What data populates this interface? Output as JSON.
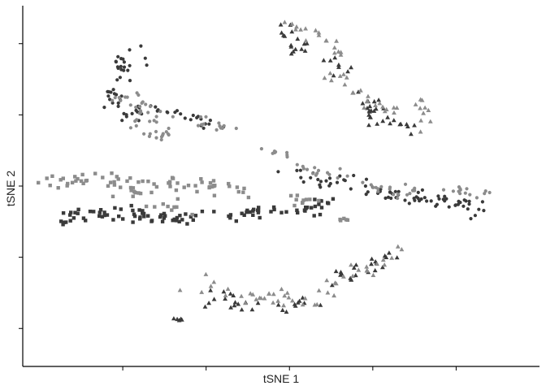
{
  "chart_data": {
    "type": "scatter",
    "title": "",
    "xlabel": "tSNE 1",
    "ylabel": "tSNE 2",
    "xlim": [
      -32,
      30
    ],
    "ylim": [
      -38,
      38
    ],
    "x_ticks": [
      -20,
      -10,
      0,
      10,
      20
    ],
    "y_ticks": [
      -30,
      -15,
      0,
      15,
      30
    ],
    "show_tick_labels": false,
    "grid": false,
    "legend": "none",
    "series": [
      {
        "color": "#3a3a3a",
        "marker": "circle",
        "clusters": [
          {
            "path": [
              [
                -21,
                30
              ],
              [
                -19.5,
                26
              ],
              [
                -20.5,
                22
              ],
              [
                -21.5,
                18
              ],
              [
                -19.5,
                15
              ],
              [
                -18,
                15.5
              ],
              [
                -17,
                17
              ],
              [
                -16,
                16
              ]
            ],
            "count": 50,
            "spread": 0.9,
            "seed": 11
          },
          {
            "path": [
              [
                -14.5,
                16
              ],
              [
                -12.5,
                15
              ],
              [
                -10.5,
                14.5
              ],
              [
                -8,
                13
              ]
            ],
            "count": 18,
            "spread": 0.8,
            "seed": 12
          },
          {
            "path": [
              [
                -1,
                3
              ],
              [
                2,
                1.5
              ],
              [
                5,
                0.5
              ],
              [
                8,
                0.8
              ]
            ],
            "count": 22,
            "spread": 0.7,
            "seed": 13
          },
          {
            "path": [
              [
                9,
                -0.5
              ],
              [
                11,
                -1.5
              ],
              [
                14,
                -2.5
              ],
              [
                17,
                -2.3
              ],
              [
                19,
                -3.5
              ],
              [
                21,
                -3.8
              ],
              [
                24,
                -5.5
              ]
            ],
            "count": 55,
            "spread": 0.8,
            "seed": 14
          }
        ]
      },
      {
        "color": "#8c8c8c",
        "marker": "circle",
        "clusters": [
          {
            "path": [
              [
                -20,
                19
              ],
              [
                -18,
                16
              ],
              [
                -17,
                15
              ],
              [
                -15,
                14
              ]
            ],
            "count": 24,
            "spread": 1,
            "seed": 21
          },
          {
            "path": [
              [
                -19,
                13.5
              ],
              [
                -17.5,
                12
              ],
              [
                -16,
                11
              ],
              [
                -14,
                10.5
              ]
            ],
            "count": 18,
            "spread": 1,
            "seed": 22
          },
          {
            "path": [
              [
                -10,
                14
              ],
              [
                -8,
                12
              ],
              [
                -7,
                11
              ]
            ],
            "count": 12,
            "spread": 0.8,
            "seed": 23
          },
          {
            "path": [
              [
                -2,
                8
              ],
              [
                -1,
                6
              ]
            ],
            "count": 8,
            "spread": 0.6,
            "seed": 24
          },
          {
            "path": [
              [
                1,
                4
              ],
              [
                4,
                2.5
              ],
              [
                7,
                2
              ]
            ],
            "count": 14,
            "spread": 0.6,
            "seed": 25
          },
          {
            "path": [
              [
                9,
                0.5
              ],
              [
                12,
                -0.8
              ],
              [
                15,
                -1.2
              ],
              [
                18,
                -1.5
              ]
            ],
            "count": 20,
            "spread": 0.7,
            "seed": 26
          },
          {
            "path": [
              [
                20,
                -0.8
              ],
              [
                23,
                -1.5
              ],
              [
                25,
                -2.5
              ]
            ],
            "count": 14,
            "spread": 0.6,
            "seed": 27
          }
        ]
      },
      {
        "color": "#3a3a3a",
        "marker": "square",
        "clusters": [
          {
            "path": [
              [
                -27,
                -8
              ],
              [
                -25.5,
                -6
              ],
              [
                -23,
                -5
              ],
              [
                -21,
                -6
              ],
              [
                -19,
                -7
              ],
              [
                -17.5,
                -6
              ]
            ],
            "count": 40,
            "spread": 0.8,
            "seed": 31
          },
          {
            "path": [
              [
                -16.5,
                -6
              ],
              [
                -14,
                -7
              ],
              [
                -12,
                -6.5
              ],
              [
                -10,
                -5.5
              ]
            ],
            "count": 22,
            "spread": 0.7,
            "seed": 32
          },
          {
            "path": [
              [
                -8,
                -6.5
              ],
              [
                -5,
                -5.5
              ],
              [
                -2,
                -5.8
              ],
              [
                1,
                -5.6
              ],
              [
                3,
                -5
              ],
              [
                4.5,
                -3
              ]
            ],
            "count": 42,
            "spread": 0.7,
            "seed": 33
          }
        ]
      },
      {
        "color": "#8c8c8c",
        "marker": "square",
        "clusters": [
          {
            "path": [
              [
                -29,
                0.5
              ],
              [
                -26,
                1
              ],
              [
                -24,
                2
              ],
              [
                -22,
                1.5
              ],
              [
                -20,
                1
              ]
            ],
            "count": 26,
            "spread": 0.8,
            "seed": 41
          },
          {
            "path": [
              [
                -20,
                1.5
              ],
              [
                -19.5,
                -1
              ],
              [
                -18,
                -2.5
              ],
              [
                -16,
                -3
              ],
              [
                -12.5,
                -4.5
              ]
            ],
            "count": 24,
            "spread": 0.9,
            "seed": 42
          },
          {
            "path": [
              [
                -17,
                0.5
              ],
              [
                -14,
                0.5
              ],
              [
                -11,
                0
              ],
              [
                -8,
                -0.5
              ],
              [
                -5,
                -1
              ]
            ],
            "count": 36,
            "spread": 0.8,
            "seed": 43
          },
          {
            "path": [
              [
                0,
                -2.5
              ],
              [
                3,
                -3.5
              ]
            ],
            "count": 10,
            "spread": 0.6,
            "seed": 44
          },
          {
            "path": [
              [
                6,
                -7
              ],
              [
                7.5,
                -7
              ]
            ],
            "count": 5,
            "spread": 0.25,
            "seed": 45
          }
        ]
      },
      {
        "color": "#3a3a3a",
        "marker": "triangle",
        "clusters": [
          {
            "path": [
              [
                -1,
                34
              ],
              [
                -0.5,
                32
              ],
              [
                0.5,
                29.5
              ],
              [
                3,
                29
              ]
            ],
            "count": 16,
            "spread": 0.8,
            "seed": 51
          },
          {
            "path": [
              [
                5,
                27.5
              ],
              [
                7,
                23
              ]
            ],
            "count": 8,
            "spread": 0.7,
            "seed": 52
          },
          {
            "path": [
              [
                8,
                19
              ],
              [
                10,
                16
              ],
              [
                12,
                13.5
              ],
              [
                14,
                12
              ],
              [
                15.5,
                13
              ]
            ],
            "count": 28,
            "spread": 1,
            "seed": 53
          },
          {
            "path": [
              [
                -10,
                -23
              ],
              [
                -8,
                -24
              ],
              [
                -5,
                -24.5
              ],
              [
                -2,
                -25.5
              ],
              [
                1,
                -24
              ],
              [
                3,
                -25
              ]
            ],
            "count": 26,
            "spread": 1,
            "seed": 54
          },
          {
            "path": [
              [
                5,
                -20
              ],
              [
                8,
                -18.5
              ],
              [
                11,
                -15
              ],
              [
                13.5,
                -14
              ]
            ],
            "count": 22,
            "spread": 0.8,
            "seed": 55
          },
          {
            "path": [
              [
                -14,
                -28
              ],
              [
                -12.5,
                -28
              ]
            ],
            "count": 5,
            "spread": 0.2,
            "seed": 56
          }
        ]
      },
      {
        "color": "#8c8c8c",
        "marker": "triangle",
        "clusters": [
          {
            "path": [
              [
                0,
                34
              ],
              [
                2,
                32.5
              ],
              [
                4,
                31
              ],
              [
                6,
                28
              ]
            ],
            "count": 18,
            "spread": 0.8,
            "seed": 61
          },
          {
            "path": [
              [
                5,
                24
              ],
              [
                8,
                19.5
              ],
              [
                10,
                17
              ],
              [
                13,
                16
              ]
            ],
            "count": 22,
            "spread": 0.9,
            "seed": 62
          },
          {
            "path": [
              [
                15,
                18
              ],
              [
                16.5,
                14
              ],
              [
                15.5,
                12
              ]
            ],
            "count": 10,
            "spread": 0.7,
            "seed": 63
          },
          {
            "path": [
              [
                -12,
                -22.5
              ],
              [
                -9,
                -21
              ],
              [
                -5,
                -23.5
              ],
              [
                -2,
                -24
              ],
              [
                2,
                -23
              ]
            ],
            "count": 22,
            "spread": 1.1,
            "seed": 64
          },
          {
            "path": [
              [
                3,
                -26
              ],
              [
                5,
                -19
              ],
              [
                9,
                -17.5
              ],
              [
                12,
                -15
              ],
              [
                14,
                -13
              ]
            ],
            "count": 22,
            "spread": 0.9,
            "seed": 65
          },
          {
            "path": [
              [
                -3,
                -24
              ],
              [
                -0.5,
                -21.5
              ]
            ],
            "count": 6,
            "spread": 0.6,
            "seed": 66
          }
        ]
      }
    ]
  }
}
